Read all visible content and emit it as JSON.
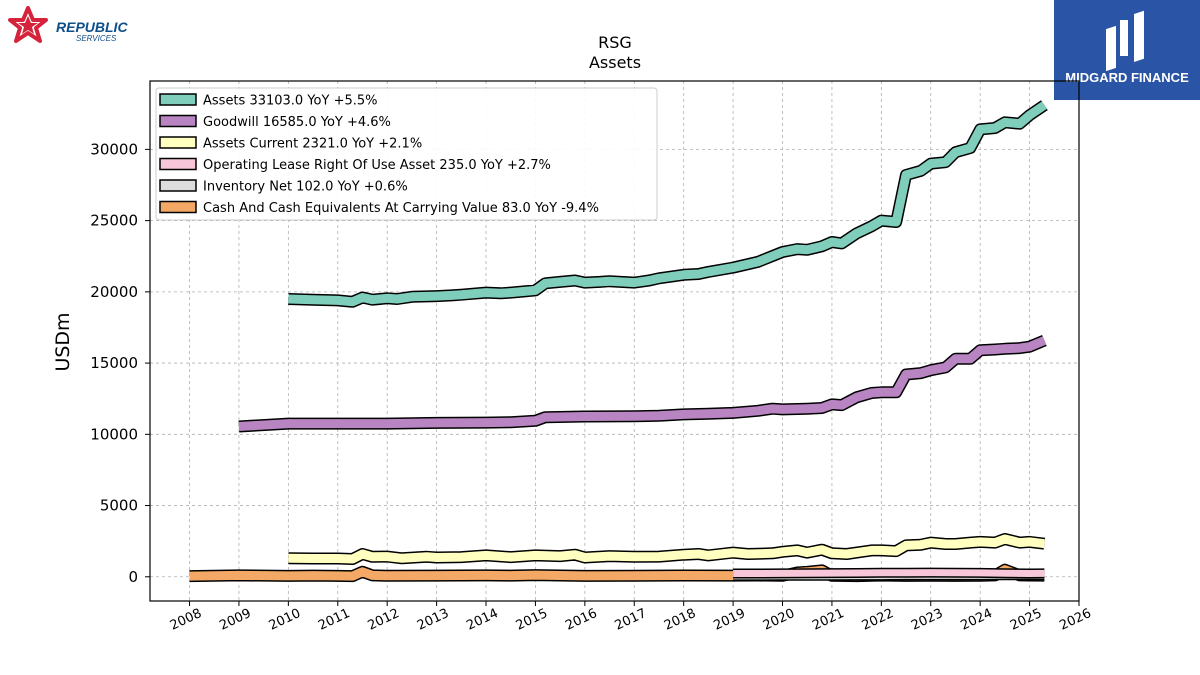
{
  "brand_left": {
    "line1": "REPUBLIC",
    "line2": "SERVICES",
    "color": "#0e4f8b",
    "accent": "#d6233c"
  },
  "brand_right": {
    "name": "MIDGARD FINANCE",
    "background": "#2a55a6"
  },
  "chart_data": {
    "type": "line",
    "title": "RSG",
    "subtitle": "Assets",
    "ylabel": "USDm",
    "xlim": [
      2007.2,
      2026.0
    ],
    "ylim": [
      -1700,
      34800
    ],
    "x_ticks": [
      2008,
      2009,
      2010,
      2011,
      2012,
      2013,
      2014,
      2015,
      2016,
      2017,
      2018,
      2019,
      2020,
      2021,
      2022,
      2023,
      2024,
      2025,
      2026
    ],
    "y_ticks": [
      0,
      5000,
      10000,
      15000,
      20000,
      25000,
      30000
    ],
    "grid": true,
    "legend_position": "top-left",
    "series": [
      {
        "name": "Assets",
        "legend": "Assets  33103.0 YoY +5.5%",
        "color": "#7fcdbb",
        "width": 9,
        "x": [
          2010.0,
          2010.5,
          2011.0,
          2011.3,
          2011.5,
          2011.7,
          2012.0,
          2012.2,
          2012.5,
          2013.0,
          2013.3,
          2013.5,
          2014.0,
          2014.3,
          2014.5,
          2015.0,
          2015.2,
          2015.5,
          2015.8,
          2016.0,
          2016.3,
          2016.5,
          2017.0,
          2017.3,
          2017.5,
          2018.0,
          2018.3,
          2018.5,
          2019.0,
          2019.5,
          2020.0,
          2020.3,
          2020.5,
          2020.8,
          2021.0,
          2021.2,
          2021.5,
          2021.8,
          2022.0,
          2022.3,
          2022.5,
          2022.8,
          2023.0,
          2023.3,
          2023.5,
          2023.8,
          2024.0,
          2024.3,
          2024.5,
          2024.8,
          2025.0,
          2025.3
        ],
        "y": [
          19500,
          19450,
          19400,
          19300,
          19600,
          19450,
          19550,
          19500,
          19650,
          19700,
          19750,
          19800,
          19950,
          19900,
          19950,
          20100,
          20600,
          20700,
          20800,
          20650,
          20700,
          20750,
          20650,
          20800,
          20950,
          21200,
          21250,
          21400,
          21700,
          22100,
          22800,
          23000,
          22950,
          23200,
          23500,
          23400,
          24100,
          24600,
          25000,
          24900,
          28200,
          28500,
          29000,
          29100,
          29800,
          30100,
          31400,
          31500,
          31900,
          31800,
          32400,
          33103
        ]
      },
      {
        "name": "Goodwill",
        "legend": "Goodwill  16585.0 YoY +4.6%",
        "color": "#b884c2",
        "width": 9,
        "x": [
          2009.0,
          2010.0,
          2011.0,
          2012.0,
          2013.0,
          2014.0,
          2014.5,
          2015.0,
          2015.2,
          2016.0,
          2017.0,
          2017.5,
          2018.0,
          2018.5,
          2019.0,
          2019.5,
          2019.8,
          2020.0,
          2020.5,
          2020.8,
          2021.0,
          2021.2,
          2021.5,
          2021.8,
          2022.0,
          2022.3,
          2022.5,
          2022.8,
          2023.0,
          2023.3,
          2023.5,
          2023.8,
          2024.0,
          2024.3,
          2024.5,
          2024.8,
          2025.0,
          2025.3
        ],
        "y": [
          10550,
          10750,
          10750,
          10750,
          10800,
          10820,
          10850,
          10950,
          11200,
          11250,
          11270,
          11300,
          11400,
          11450,
          11500,
          11650,
          11800,
          11750,
          11800,
          11850,
          12100,
          12050,
          12600,
          12900,
          12950,
          12950,
          14200,
          14300,
          14500,
          14700,
          15300,
          15300,
          15900,
          15950,
          16000,
          16050,
          16150,
          16585
        ]
      },
      {
        "name": "Assets Current",
        "legend": "Assets Current  2321.0 YoY +2.1%",
        "color": "#ffffbf",
        "width": 9,
        "x": [
          2010.0,
          2010.5,
          2011.0,
          2011.3,
          2011.5,
          2011.7,
          2012.0,
          2012.3,
          2012.8,
          2013.0,
          2013.5,
          2014.0,
          2014.5,
          2015.0,
          2015.5,
          2015.8,
          2016.0,
          2016.5,
          2017.0,
          2017.5,
          2018.0,
          2018.3,
          2018.5,
          2019.0,
          2019.3,
          2019.8,
          2020.0,
          2020.3,
          2020.5,
          2020.8,
          2021.0,
          2021.3,
          2021.5,
          2021.8,
          2022.0,
          2022.3,
          2022.5,
          2022.8,
          2023.0,
          2023.3,
          2023.5,
          2023.8,
          2024.0,
          2024.3,
          2024.5,
          2024.8,
          2025.0,
          2025.3
        ],
        "y": [
          1300,
          1280,
          1280,
          1250,
          1600,
          1400,
          1420,
          1300,
          1400,
          1350,
          1380,
          1500,
          1380,
          1500,
          1450,
          1550,
          1350,
          1450,
          1400,
          1420,
          1550,
          1600,
          1500,
          1700,
          1600,
          1650,
          1750,
          1850,
          1700,
          1900,
          1650,
          1600,
          1700,
          1850,
          1850,
          1800,
          2200,
          2250,
          2400,
          2300,
          2300,
          2400,
          2450,
          2400,
          2650,
          2400,
          2450,
          2321
        ]
      },
      {
        "name": "Operating Lease Right Of Use Asset",
        "legend": "Operating Lease Right Of Use Asset  235.0 YoY +2.7%",
        "color": "#f7c6d9",
        "width": 7,
        "x": [
          2019.0,
          2019.5,
          2020.0,
          2020.5,
          2021.0,
          2021.5,
          2022.0,
          2022.5,
          2023.0,
          2023.5,
          2024.0,
          2024.5,
          2025.0,
          2025.3
        ],
        "y": [
          230,
          230,
          240,
          250,
          260,
          265,
          280,
          285,
          290,
          285,
          270,
          250,
          230,
          235
        ]
      },
      {
        "name": "Inventory Net",
        "legend": "Inventory Net  102.0 YoY +0.6%",
        "color": "#dddddd",
        "width": 7,
        "x": [
          2019.0,
          2019.5,
          2020.0,
          2020.5,
          2021.0,
          2021.5,
          2022.0,
          2022.5,
          2023.0,
          2023.5,
          2024.0,
          2024.5,
          2025.0,
          2025.3
        ],
        "y": [
          60,
          65,
          70,
          75,
          75,
          80,
          85,
          95,
          100,
          100,
          100,
          102,
          101,
          102
        ]
      },
      {
        "name": "Cash And Cash Equivalents At Carrying Value",
        "legend": "Cash And Cash Equivalents At Carrying Value  83.0 YoY -9.4%",
        "color": "#f4a866",
        "width": 9,
        "x": [
          2008.0,
          2009.0,
          2010.0,
          2010.5,
          2011.0,
          2011.3,
          2011.5,
          2011.7,
          2012.0,
          2013.0,
          2014.0,
          2014.5,
          2015.0,
          2016.0,
          2017.0,
          2018.0,
          2019.0,
          2019.5,
          2020.0,
          2020.3,
          2020.5,
          2020.8,
          2021.0,
          2021.5,
          2022.0,
          2022.5,
          2023.0,
          2023.5,
          2024.0,
          2024.3,
          2024.5,
          2024.8,
          2025.0,
          2025.3
        ],
        "y": [
          50,
          100,
          60,
          80,
          60,
          50,
          350,
          100,
          70,
          80,
          100,
          80,
          120,
          60,
          70,
          90,
          80,
          90,
          70,
          300,
          350,
          450,
          70,
          50,
          90,
          60,
          70,
          60,
          70,
          100,
          500,
          100,
          90,
          83
        ]
      }
    ]
  }
}
